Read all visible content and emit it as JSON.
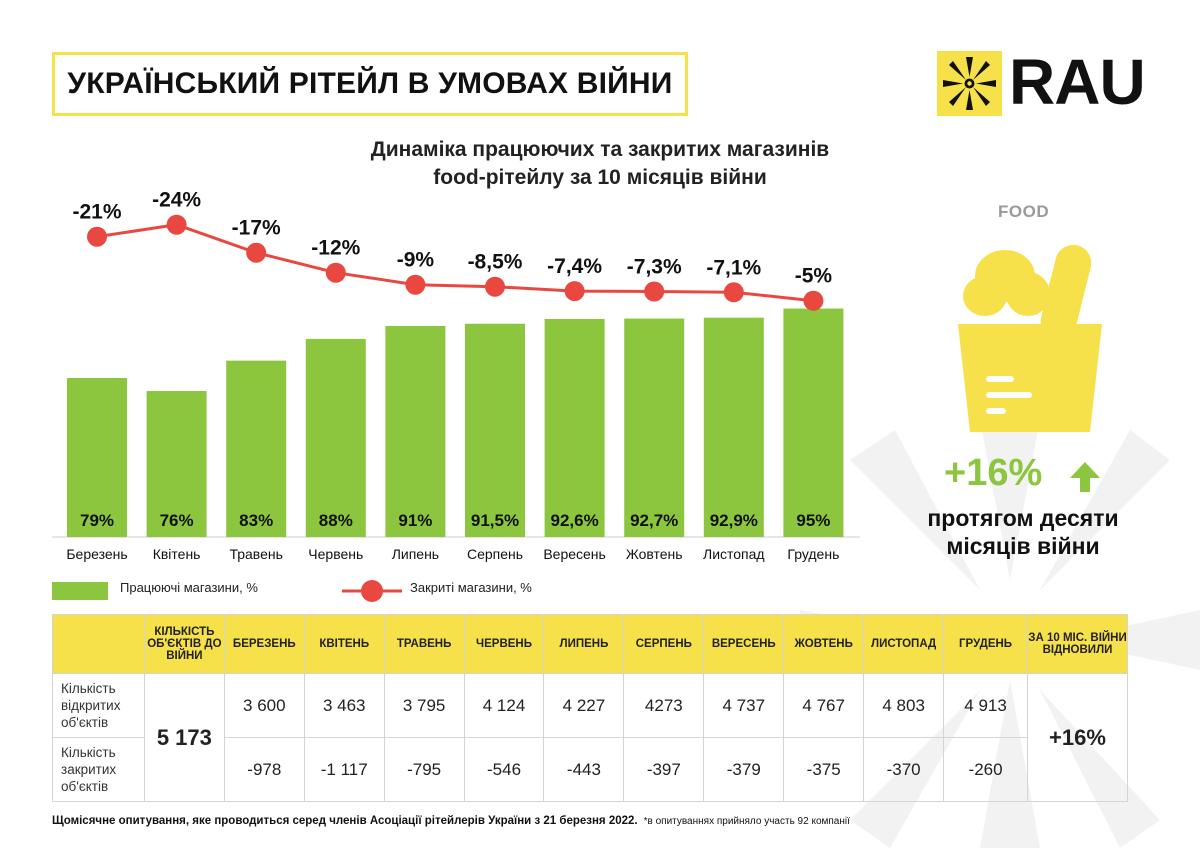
{
  "header": {
    "title": "УКРАЇНСЬКИЙ РІТЕЙЛ В УМОВАХ ВІЙНИ",
    "logo_text": "RAU"
  },
  "chart_data": {
    "type": "bar",
    "title_lines": [
      "Динаміка працюючих та закритих магазинів",
      "food-рітейлу за 10 місяців війни"
    ],
    "categories": [
      "Березень",
      "Квітень",
      "Травень",
      "Червень",
      "Липень",
      "Серпень",
      "Вересень",
      "Жовтень",
      "Листопад",
      "Грудень"
    ],
    "series": [
      {
        "name": "Працюючі магазини, %",
        "kind": "bar",
        "color": "#8cc63f",
        "values": [
          79,
          76,
          83,
          88,
          91,
          91.5,
          92.6,
          92.7,
          92.9,
          95
        ],
        "labels": [
          "79%",
          "76%",
          "83%",
          "88%",
          "91%",
          "91,5%",
          "92,6%",
          "92,7%",
          "92,9%",
          "95%"
        ]
      },
      {
        "name": "Закриті магазини, %",
        "kind": "line",
        "color": "#e8483f",
        "values": [
          -21,
          -24,
          -17,
          -12,
          -9,
          -8.5,
          -7.4,
          -7.3,
          -7.1,
          -5
        ],
        "labels": [
          "-21%",
          "-24%",
          "-17%",
          "-12%",
          "-9%",
          "-8,5%",
          "-7,4%",
          "-7,3%",
          "-7,1%",
          "-5%"
        ]
      }
    ],
    "legend": "bottom"
  },
  "side": {
    "category": "FOOD",
    "growth": "+16%",
    "desc_lines": [
      "протягом десяти",
      "місяців війни"
    ]
  },
  "table": {
    "headers": [
      "КІЛЬКІСТЬ ОБ'ЄКТІВ ДО ВІЙНИ",
      "БЕРЕЗЕНЬ",
      "КВІТЕНЬ",
      "ТРАВЕНЬ",
      "ЧЕРВЕНЬ",
      "ЛИПЕНЬ",
      "СЕРПЕНЬ",
      "ВЕРЕСЕНЬ",
      "ЖОВТЕНЬ",
      "ЛИСТОПАД",
      "ГРУДЕНЬ",
      "ЗА 10 МІС. ВІЙНИ ВІДНОВИЛИ"
    ],
    "rows": [
      {
        "label": "Кількість відкритих об'єктів",
        "values": [
          "3 600",
          "3 463",
          "3 795",
          "4 124",
          "4 227",
          "4273",
          "4 737",
          "4 767",
          "4 803",
          "4 913"
        ]
      },
      {
        "label": "Кількість закритих об'єктів",
        "values": [
          "-978",
          "-1 117",
          "-795",
          "-546",
          "-443",
          "-397",
          "-379",
          "-375",
          "-370",
          "-260"
        ]
      }
    ],
    "prewar_total": "5 173",
    "restored": "+16%"
  },
  "footer": {
    "main": "Щомісячне опитування, яке проводиться серед членів Асоціації рітейлерів України з 21 березня 2022.",
    "note": "*в опитуваннях прийняло участь 92 компанії"
  }
}
